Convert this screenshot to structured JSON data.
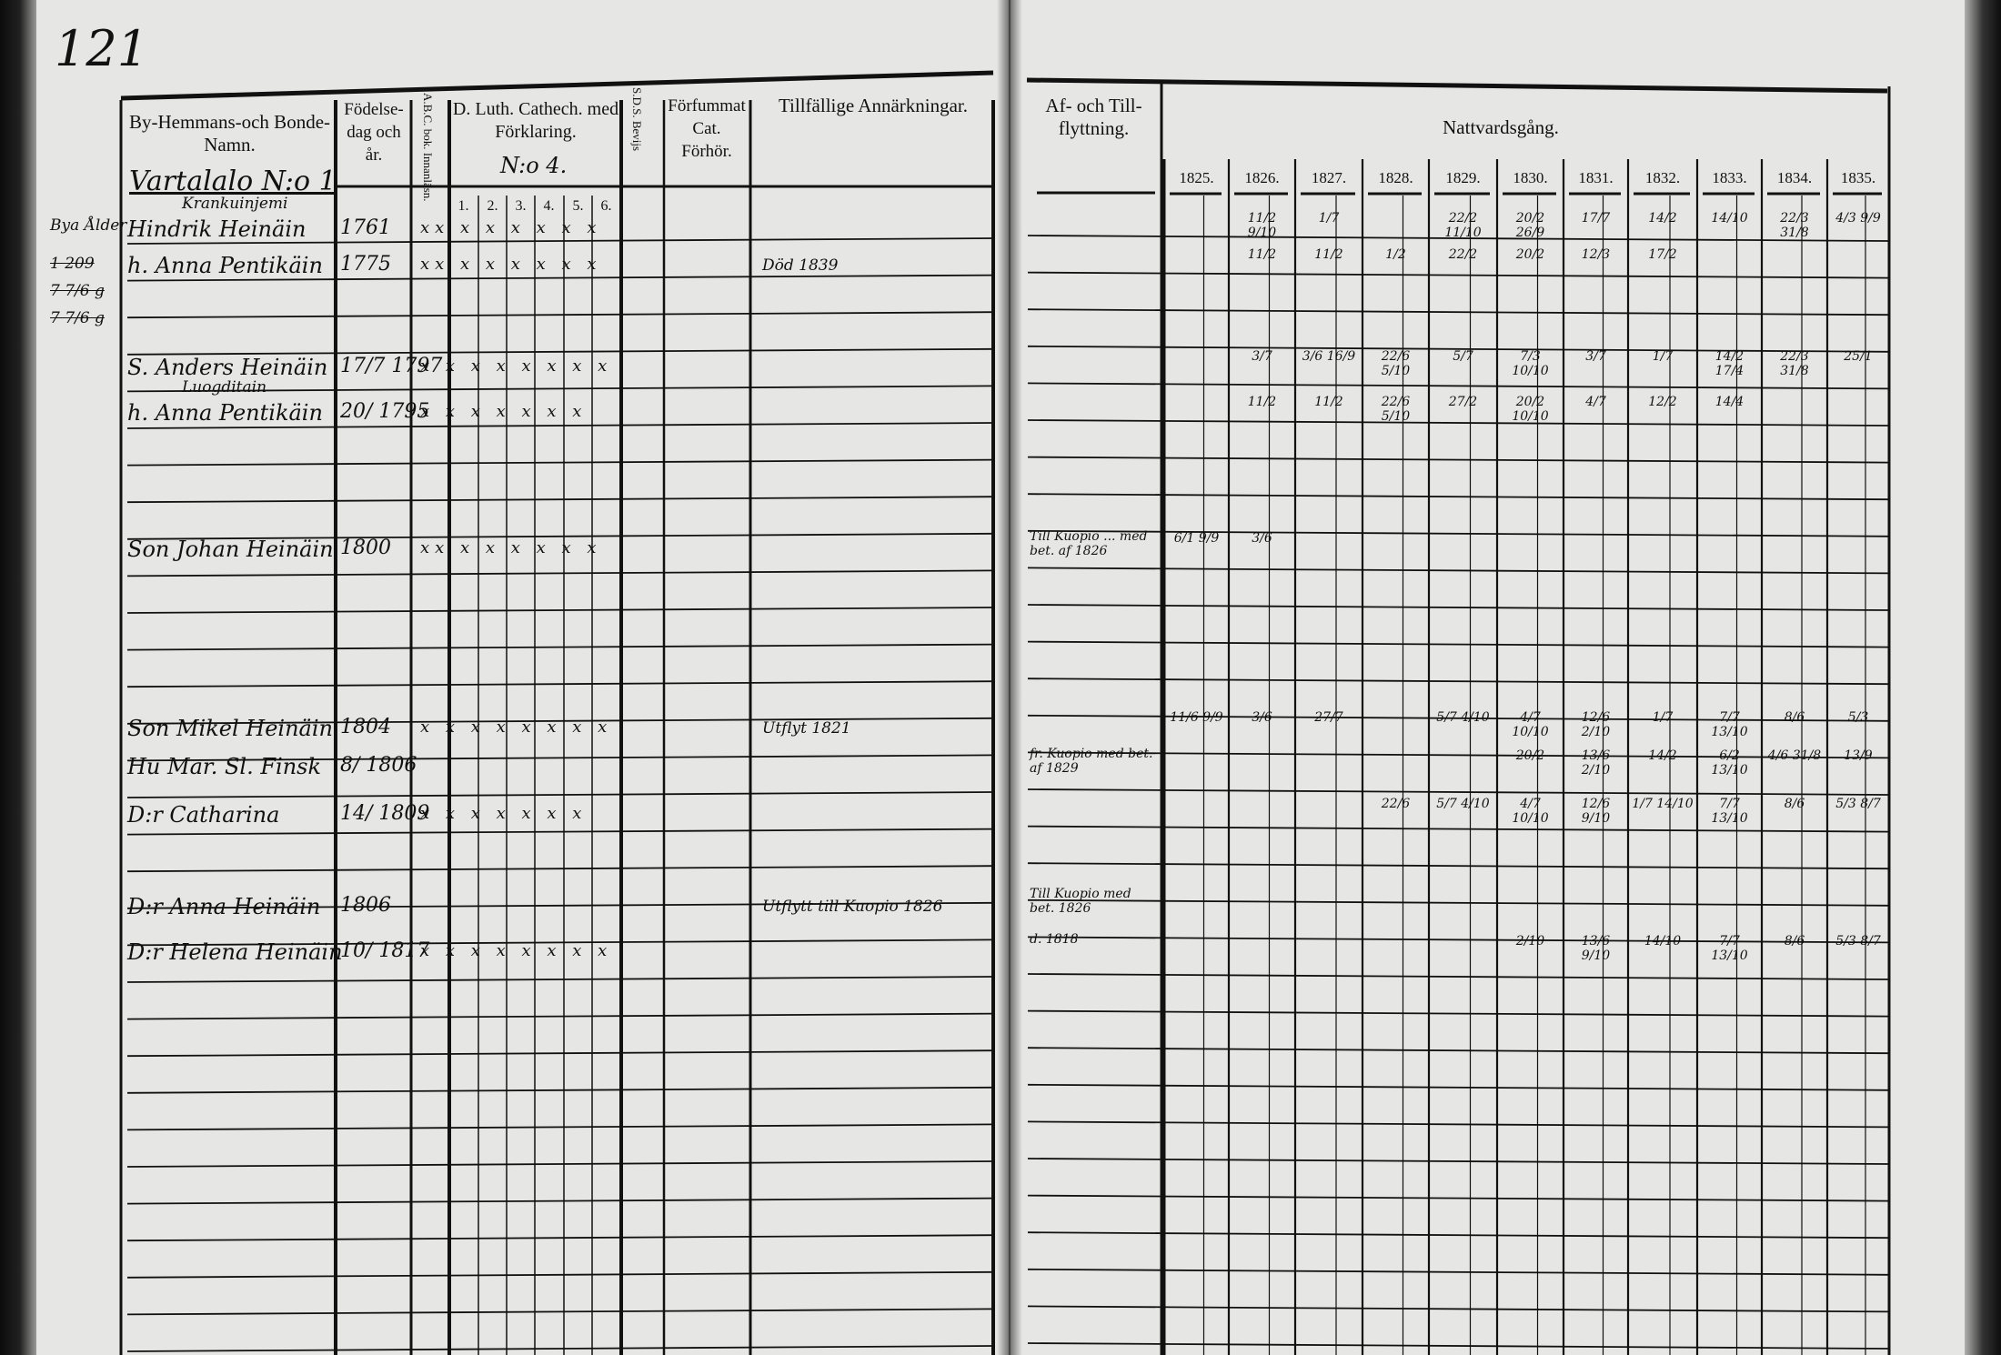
{
  "page_number": "121",
  "left_page": {
    "headers": {
      "name": "By-Hemmans-och Bonde-Namn.",
      "birth": "Födelse-dag och år.",
      "abc": "A.B.C. bok. Innanläsn.",
      "catechism": "D. Luth. Cathech. med Förklaring.",
      "catechism_no": "N:o 4.",
      "catechism_cols": [
        "1.",
        "2.",
        "3.",
        "4.",
        "5.",
        "6."
      ],
      "sds": "S.D.S. Bevijs",
      "forhor": "Förfummat Cat. Förhör.",
      "remarks": "Tillfällige Annärkningar."
    },
    "farm_heading": "Vartalalo N:o 1",
    "margin_notes": [
      "Bya Ålder",
      "1 209",
      "7 7/6 g",
      "7 7/6 g"
    ],
    "rows": [
      {
        "name": "Hindrik Heinäin",
        "above": "Krankuinjemi",
        "birth": "1761",
        "marks": "xx x x x x x x",
        "remark": ""
      },
      {
        "name": "h. Anna Pentikäin",
        "above": "",
        "birth": "1775",
        "marks": "xx x x x x x x",
        "remark": "Död 1839"
      },
      {
        "name": "S. Anders Heinäin",
        "above": "",
        "birth": "17/7 1797",
        "marks": "x x x x x x x x",
        "remark": ""
      },
      {
        "name": "h. Anna Pentikäin",
        "above": "Luogditain",
        "birth": "20/ 1795",
        "marks": "x x x x x x x",
        "remark": ""
      },
      {
        "name": "Son Johan Heinäin",
        "above": "",
        "birth": "1800",
        "marks": "xx x x x x x x",
        "remark": ""
      },
      {
        "name": "Son Mikel Heinäin",
        "above": "",
        "birth": "1804",
        "marks": "x x x x x x x x",
        "remark": "Utflyt 1821"
      },
      {
        "name": "Hu Mar. Sl. Finsk",
        "above": "",
        "birth": "8/ 1806",
        "marks": "",
        "remark": ""
      },
      {
        "name": "D:r Catharina",
        "above": "",
        "birth": "14/ 1809",
        "marks": "x x x x x x x",
        "remark": ""
      },
      {
        "name": "D:r Anna Heinäin",
        "above": "",
        "birth": "1806",
        "marks": "",
        "remark": "Utflytt till Kuopio 1826"
      },
      {
        "name": "D:r Helena Heinäin",
        "above": "",
        "birth": "10/ 1817",
        "marks": "x x x x x x x x",
        "remark": ""
      }
    ]
  },
  "right_page": {
    "headers": {
      "moving": "Af- och Till-flyttning.",
      "communion": "Nattvardsgång.",
      "years": [
        "1825.",
        "1826.",
        "1827.",
        "1828.",
        "1829.",
        "1830.",
        "1831.",
        "1832.",
        "1833.",
        "1834.",
        "1835."
      ]
    },
    "moving_notes": [
      {
        "row": 4,
        "text": "Till Kuopio ... med bet. af 1826"
      },
      {
        "row": 6,
        "text": "fr. Kuopio med bet. af 1829"
      },
      {
        "row": 8,
        "text": "Till Kuopio med bet. 1826"
      },
      {
        "row": 9,
        "text": "d. 1818"
      }
    ],
    "communion": [
      {
        "row": 0,
        "entries": {
          "1826": "11/2 9/10",
          "1827": "1/7",
          "1829": "22/2 11/10",
          "1830": "20/2 26/9",
          "1831": "17/7",
          "1832": "14/2",
          "1833": "14/10",
          "1834": "22/3 31/8",
          "1835": "4/3 9/9"
        }
      },
      {
        "row": 1,
        "entries": {
          "1826": "11/2",
          "1827": "11/2",
          "1828": "1/2",
          "1829": "22/2",
          "1830": "20/2",
          "1831": "12/3",
          "1832": "17/2"
        }
      },
      {
        "row": 2,
        "entries": {
          "1826": "3/7",
          "1827": "3/6 16/9",
          "1828": "22/6 5/10",
          "1829": "5/7",
          "1830": "7/3 10/10",
          "1831": "3/7",
          "1832": "1/7",
          "1833": "14/2 17/4",
          "1834": "22/3 31/8",
          "1835": "25/1"
        }
      },
      {
        "row": 3,
        "entries": {
          "1826": "11/2",
          "1827": "11/2",
          "1828": "22/6 5/10",
          "1829": "27/2",
          "1830": "20/2 10/10",
          "1831": "4/7",
          "1832": "12/2",
          "1833": "14/4"
        }
      },
      {
        "row": 4,
        "entries": {
          "1825": "6/1 9/9",
          "1826": "3/6"
        }
      },
      {
        "row": 5,
        "entries": {
          "1825": "11/6 9/9",
          "1826": "3/6",
          "1827": "27/7",
          "1829": "5/7 4/10",
          "1830": "4/7 10/10",
          "1831": "12/6 2/10",
          "1832": "1/7",
          "1833": "7/7 13/10",
          "1834": "8/6",
          "1835": "5/3"
        }
      },
      {
        "row": 6,
        "entries": {
          "1830": "20/2",
          "1831": "13/6 2/10",
          "1832": "14/2",
          "1833": "6/2 13/10",
          "1834": "4/6 31/8",
          "1835": "13/9"
        }
      },
      {
        "row": 7,
        "entries": {
          "1828": "22/6",
          "1829": "5/7 4/10",
          "1830": "4/7 10/10",
          "1831": "12/6 9/10",
          "1832": "1/7 14/10",
          "1833": "7/7 13/10",
          "1834": "8/6",
          "1835": "5/3 8/7"
        }
      },
      {
        "row": 9,
        "entries": {
          "1830": "2/10",
          "1831": "13/6 9/10",
          "1832": "14/10",
          "1833": "7/7 13/10",
          "1834": "8/6",
          "1835": "5/3 8/7"
        }
      }
    ]
  }
}
